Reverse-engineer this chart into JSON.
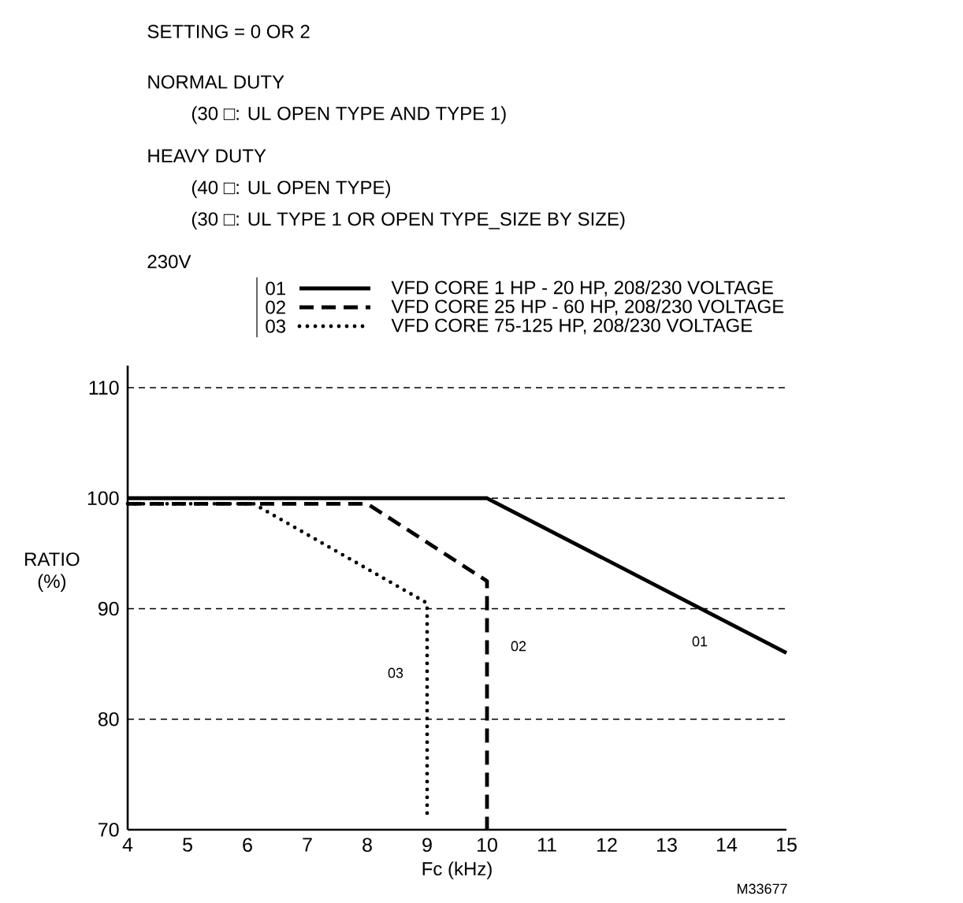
{
  "chart_data": {
    "type": "line",
    "title": "SETTING = 0 OR 2",
    "xlabel": "Fc (kHz)",
    "ylabel": "RATIO (%)",
    "xlim": [
      4,
      15
    ],
    "ylim": [
      70,
      112
    ],
    "xticks": [
      4,
      5,
      6,
      7,
      8,
      9,
      10,
      11,
      12,
      13,
      14,
      15
    ],
    "yticks": [
      70,
      80,
      90,
      100,
      110
    ],
    "grid": "y",
    "legend": "top right",
    "marker": "none",
    "series": [
      {
        "name": "VFD CORE 1 HP - 20 HP, 208/230 VOLTAGE",
        "color": "#000000",
        "line_style": "solid",
        "x": [
          4,
          10,
          15
        ],
        "values": [
          100,
          100,
          86
        ]
      },
      {
        "name": "VFD CORE 25 HP - 60 HP, 208/230 VOLTAGE",
        "color": "#000000",
        "line_style": "dashed",
        "x": [
          4,
          8,
          10,
          10
        ],
        "values": [
          99.5,
          99.5,
          92.5,
          70
        ]
      },
      {
        "name": "VFD CORE 75-125 HP, 208/230 VOLTAGE",
        "color": "#000000",
        "line_style": "dotted",
        "x": [
          4,
          6.1,
          9,
          9
        ],
        "values": [
          99.5,
          99.5,
          90.5,
          71
        ]
      }
    ],
    "annotations": [
      "NORMAL DUTY",
      "(30 □:  UL OPEN TYPE AND TYPE 1)",
      "HEAVY DUTY",
      "(40 □:  UL OPEN TYPE)",
      "(30 □:  UL TYPE 1 OR OPEN TYPE_SIZE BY SIZE)",
      "230V",
      "M33677",
      "01",
      "02",
      "03"
    ]
  }
}
